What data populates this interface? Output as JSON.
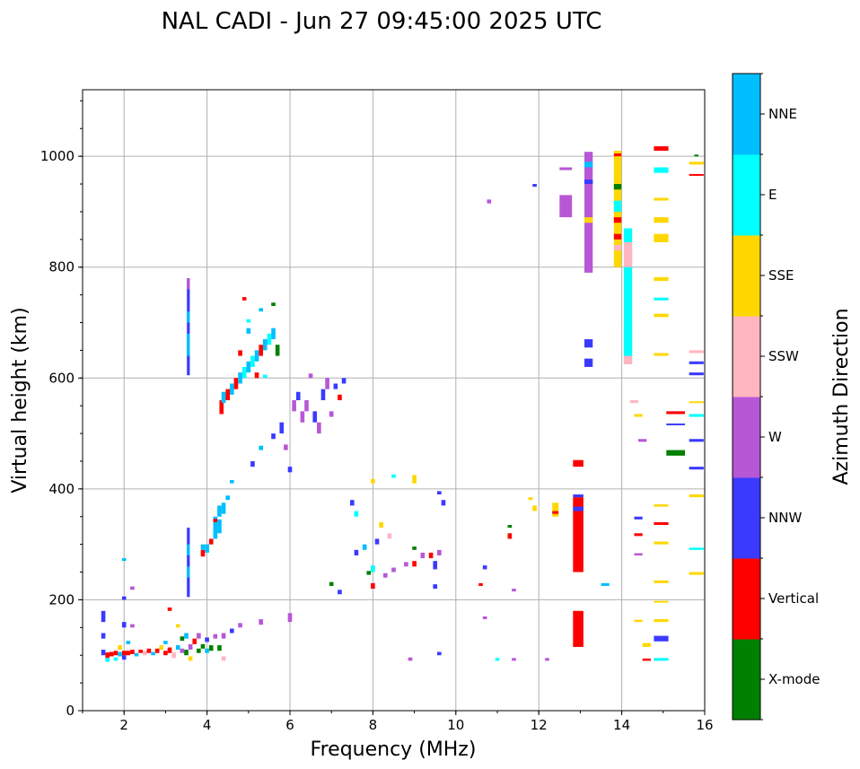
{
  "chart_data": {
    "type": "scatter",
    "title": "NAL CADI - Jun 27 09:45:00 2025 UTC",
    "xlabel": "Frequency (MHz)",
    "ylabel": "Virtual height (km)",
    "xlim": [
      1,
      16
    ],
    "ylim": [
      0,
      1120
    ],
    "xticks": [
      2,
      4,
      6,
      8,
      10,
      12,
      14,
      16
    ],
    "yticks": [
      0,
      200,
      400,
      600,
      800,
      1000
    ],
    "grid": true,
    "colorbar": {
      "label": "Azimuth Direction",
      "categories": [
        "X-mode",
        "Vertical",
        "NNW",
        "W",
        "SSW",
        "SSE",
        "E",
        "NNE"
      ],
      "colors": [
        "#008000",
        "#ff0000",
        "#3a3aff",
        "#b857d6",
        "#ffb6c1",
        "#ffd700",
        "#00ffff",
        "#00bfff"
      ]
    },
    "point_format": "[frequency_MHz, height_low_km, height_high_km, category_index, freq_width_MHz]",
    "points": [
      [
        1.5,
        160,
        180,
        2,
        0.1
      ],
      [
        1.5,
        130,
        140,
        2,
        0.1
      ],
      [
        1.5,
        100,
        110,
        2,
        0.1
      ],
      [
        1.6,
        95,
        105,
        1,
        0.1
      ],
      [
        1.6,
        88,
        95,
        6,
        0.1
      ],
      [
        1.7,
        98,
        106,
        1,
        0.1
      ],
      [
        1.8,
        100,
        108,
        1,
        0.1
      ],
      [
        1.8,
        90,
        96,
        6,
        0.1
      ],
      [
        1.9,
        98,
        106,
        7,
        0.1
      ],
      [
        1.9,
        110,
        118,
        5,
        0.1
      ],
      [
        2.0,
        92,
        100,
        2,
        0.1
      ],
      [
        2.0,
        100,
        108,
        1,
        0.1
      ],
      [
        2.0,
        150,
        160,
        2,
        0.1
      ],
      [
        2.0,
        200,
        206,
        2,
        0.1
      ],
      [
        2.0,
        270,
        275,
        7,
        0.1
      ],
      [
        2.1,
        100,
        108,
        1,
        0.1
      ],
      [
        2.1,
        120,
        126,
        7,
        0.1
      ],
      [
        2.2,
        102,
        110,
        1,
        0.1
      ],
      [
        2.2,
        150,
        156,
        3,
        0.1
      ],
      [
        2.2,
        218,
        224,
        3,
        0.1
      ],
      [
        2.3,
        98,
        104,
        7,
        0.1
      ],
      [
        2.4,
        104,
        110,
        1,
        0.1
      ],
      [
        2.5,
        100,
        108,
        4,
        0.1
      ],
      [
        2.6,
        104,
        112,
        1,
        0.1
      ],
      [
        2.7,
        100,
        106,
        7,
        0.1
      ],
      [
        2.8,
        104,
        112,
        1,
        0.1
      ],
      [
        2.9,
        110,
        118,
        5,
        0.1
      ],
      [
        3.0,
        100,
        108,
        1,
        0.1
      ],
      [
        3.0,
        120,
        126,
        7,
        0.1
      ],
      [
        3.1,
        104,
        114,
        1,
        0.1
      ],
      [
        3.1,
        180,
        186,
        1,
        0.1
      ],
      [
        3.2,
        95,
        105,
        4,
        0.1
      ],
      [
        3.3,
        110,
        118,
        7,
        0.1
      ],
      [
        3.3,
        150,
        156,
        5,
        0.1
      ],
      [
        3.4,
        104,
        112,
        3,
        0.1
      ],
      [
        3.4,
        126,
        134,
        0,
        0.1
      ],
      [
        3.5,
        100,
        110,
        0,
        0.1
      ],
      [
        3.5,
        130,
        140,
        7,
        0.1
      ],
      [
        3.6,
        110,
        120,
        3,
        0.1
      ],
      [
        3.6,
        90,
        98,
        5,
        0.1
      ],
      [
        3.7,
        120,
        130,
        1,
        0.1
      ],
      [
        3.8,
        104,
        112,
        0,
        0.1
      ],
      [
        3.8,
        130,
        140,
        3,
        0.1
      ],
      [
        3.9,
        112,
        120,
        0,
        0.1
      ],
      [
        4.0,
        124,
        132,
        2,
        0.1
      ],
      [
        4.0,
        104,
        112,
        7,
        0.1
      ],
      [
        4.1,
        108,
        118,
        0,
        0.1
      ],
      [
        4.2,
        130,
        138,
        3,
        0.1
      ],
      [
        4.3,
        108,
        118,
        0,
        0.1
      ],
      [
        4.4,
        130,
        140,
        3,
        0.1
      ],
      [
        4.6,
        140,
        148,
        2,
        0.1
      ],
      [
        4.8,
        150,
        158,
        3,
        0.1
      ],
      [
        5.3,
        155,
        165,
        3,
        0.1
      ],
      [
        6.0,
        160,
        176,
        3,
        0.1
      ],
      [
        4.4,
        90,
        98,
        4,
        0.1
      ],
      [
        3.55,
        205,
        330,
        2,
        0.07
      ],
      [
        3.55,
        240,
        260,
        7,
        0.07
      ],
      [
        3.55,
        280,
        300,
        7,
        0.07
      ],
      [
        3.55,
        605,
        780,
        2,
        0.07
      ],
      [
        3.55,
        640,
        680,
        7,
        0.07
      ],
      [
        3.55,
        700,
        720,
        7,
        0.07
      ],
      [
        3.55,
        760,
        780,
        3,
        0.07
      ],
      [
        3.9,
        278,
        290,
        1,
        0.1
      ],
      [
        3.9,
        290,
        300,
        7,
        0.1
      ],
      [
        4.0,
        285,
        300,
        7,
        0.1
      ],
      [
        4.1,
        300,
        310,
        7,
        0.1
      ],
      [
        4.2,
        310,
        330,
        7,
        0.1
      ],
      [
        4.2,
        330,
        350,
        7,
        0.1
      ],
      [
        4.3,
        320,
        345,
        7,
        0.1
      ],
      [
        4.3,
        350,
        370,
        7,
        0.1
      ],
      [
        4.4,
        355,
        375,
        7,
        0.1
      ],
      [
        4.5,
        380,
        388,
        7,
        0.1
      ],
      [
        4.1,
        300,
        310,
        1,
        0.1
      ],
      [
        4.2,
        340,
        346,
        1,
        0.1
      ],
      [
        4.6,
        410,
        416,
        7,
        0.1
      ],
      [
        4.35,
        535,
        560,
        1,
        0.1
      ],
      [
        4.4,
        555,
        575,
        7,
        0.1
      ],
      [
        4.5,
        560,
        580,
        1,
        0.1
      ],
      [
        4.6,
        570,
        590,
        7,
        0.1
      ],
      [
        4.7,
        580,
        600,
        1,
        0.1
      ],
      [
        4.8,
        590,
        610,
        7,
        0.1
      ],
      [
        4.9,
        600,
        620,
        6,
        0.1
      ],
      [
        5.0,
        610,
        630,
        7,
        0.1
      ],
      [
        5.1,
        620,
        640,
        6,
        0.1
      ],
      [
        5.2,
        630,
        650,
        7,
        0.1
      ],
      [
        5.3,
        640,
        660,
        1,
        0.1
      ],
      [
        5.4,
        650,
        670,
        7,
        0.1
      ],
      [
        5.5,
        660,
        680,
        6,
        0.1
      ],
      [
        5.6,
        670,
        690,
        7,
        0.1
      ],
      [
        5.7,
        640,
        660,
        0,
        0.1
      ],
      [
        4.9,
        740,
        746,
        1,
        0.1
      ],
      [
        5.0,
        700,
        706,
        6,
        0.1
      ],
      [
        5.3,
        720,
        726,
        7,
        0.1
      ],
      [
        5.6,
        730,
        736,
        0,
        0.1
      ],
      [
        5.4,
        600,
        606,
        6,
        0.1
      ],
      [
        5.0,
        680,
        690,
        7,
        0.1
      ],
      [
        4.8,
        640,
        650,
        1,
        0.1
      ],
      [
        5.2,
        600,
        610,
        1,
        0.1
      ],
      [
        5.1,
        440,
        450,
        2,
        0.1
      ],
      [
        5.3,
        470,
        478,
        7,
        0.1
      ],
      [
        5.6,
        490,
        500,
        2,
        0.1
      ],
      [
        5.8,
        500,
        520,
        2,
        0.1
      ],
      [
        5.9,
        470,
        480,
        3,
        0.1
      ],
      [
        6.0,
        430,
        440,
        2,
        0.1
      ],
      [
        6.1,
        540,
        560,
        3,
        0.1
      ],
      [
        6.2,
        560,
        575,
        2,
        0.1
      ],
      [
        6.3,
        520,
        540,
        3,
        0.1
      ],
      [
        6.4,
        540,
        560,
        3,
        0.1
      ],
      [
        6.5,
        600,
        608,
        3,
        0.1
      ],
      [
        6.6,
        520,
        540,
        2,
        0.1
      ],
      [
        6.7,
        500,
        520,
        3,
        0.1
      ],
      [
        6.8,
        560,
        580,
        2,
        0.1
      ],
      [
        6.9,
        580,
        600,
        3,
        0.1
      ],
      [
        7.0,
        530,
        540,
        3,
        0.1
      ],
      [
        7.1,
        580,
        590,
        2,
        0.1
      ],
      [
        7.2,
        560,
        570,
        1,
        0.1
      ],
      [
        7.3,
        590,
        600,
        2,
        0.1
      ],
      [
        7.0,
        225,
        232,
        0,
        0.1
      ],
      [
        7.2,
        210,
        218,
        2,
        0.1
      ],
      [
        7.5,
        370,
        380,
        2,
        0.1
      ],
      [
        7.6,
        350,
        360,
        6,
        0.1
      ],
      [
        7.6,
        280,
        290,
        2,
        0.1
      ],
      [
        7.8,
        290,
        300,
        7,
        0.1
      ],
      [
        7.9,
        245,
        252,
        0,
        0.1
      ],
      [
        8.0,
        220,
        230,
        1,
        0.1
      ],
      [
        8.0,
        410,
        418,
        5,
        0.1
      ],
      [
        8.1,
        300,
        310,
        2,
        0.1
      ],
      [
        8.2,
        330,
        340,
        5,
        0.1
      ],
      [
        8.3,
        240,
        248,
        3,
        0.1
      ],
      [
        8.4,
        310,
        320,
        4,
        0.1
      ],
      [
        8.5,
        250,
        258,
        3,
        0.1
      ],
      [
        8.5,
        420,
        426,
        6,
        0.1
      ],
      [
        8.8,
        260,
        268,
        3,
        0.1
      ],
      [
        9.0,
        260,
        270,
        1,
        0.1
      ],
      [
        9.0,
        290,
        296,
        0,
        0.1
      ],
      [
        9.0,
        410,
        425,
        5,
        0.1
      ],
      [
        9.2,
        275,
        285,
        3,
        0.1
      ],
      [
        9.4,
        275,
        285,
        1,
        0.1
      ],
      [
        9.5,
        255,
        270,
        2,
        0.1
      ],
      [
        9.6,
        280,
        290,
        3,
        0.1
      ],
      [
        9.6,
        390,
        396,
        2,
        0.1
      ],
      [
        9.7,
        370,
        380,
        2,
        0.1
      ],
      [
        9.5,
        220,
        228,
        2,
        0.1
      ],
      [
        9.6,
        100,
        106,
        2,
        0.1
      ],
      [
        8.9,
        90,
        96,
        3,
        0.1
      ],
      [
        8.0,
        250,
        262,
        6,
        0.1
      ],
      [
        10.6,
        225,
        230,
        1,
        0.1
      ],
      [
        10.7,
        255,
        262,
        2,
        0.1
      ],
      [
        10.7,
        165,
        170,
        3,
        0.1
      ],
      [
        10.8,
        915,
        922,
        3,
        0.1
      ],
      [
        11.0,
        90,
        95,
        6,
        0.1
      ],
      [
        11.3,
        310,
        320,
        1,
        0.1
      ],
      [
        11.3,
        330,
        335,
        0,
        0.1
      ],
      [
        11.4,
        90,
        95,
        3,
        0.1
      ],
      [
        11.4,
        215,
        220,
        3,
        0.1
      ],
      [
        11.9,
        945,
        950,
        2,
        0.1
      ],
      [
        11.9,
        360,
        370,
        5,
        0.1
      ],
      [
        11.8,
        380,
        385,
        5,
        0.1
      ],
      [
        12.2,
        90,
        95,
        3,
        0.1
      ],
      [
        12.4,
        350,
        375,
        5,
        0.15
      ],
      [
        12.4,
        355,
        360,
        1,
        0.15
      ],
      [
        12.65,
        890,
        930,
        3,
        0.3
      ],
      [
        12.65,
        975,
        980,
        3,
        0.3
      ],
      [
        12.95,
        250,
        385,
        1,
        0.25
      ],
      [
        12.95,
        115,
        180,
        1,
        0.25
      ],
      [
        12.95,
        440,
        452,
        1,
        0.25
      ],
      [
        12.95,
        360,
        368,
        2,
        0.25
      ],
      [
        12.95,
        385,
        390,
        2,
        0.25
      ],
      [
        13.2,
        790,
        1008,
        3,
        0.2
      ],
      [
        13.2,
        880,
        890,
        5,
        0.2
      ],
      [
        13.2,
        950,
        958,
        2,
        0.2
      ],
      [
        13.2,
        620,
        635,
        2,
        0.2
      ],
      [
        13.2,
        655,
        670,
        2,
        0.2
      ],
      [
        13.2,
        980,
        990,
        7,
        0.2
      ],
      [
        13.6,
        225,
        230,
        7,
        0.2
      ],
      [
        13.9,
        800,
        1010,
        5,
        0.18
      ],
      [
        13.9,
        940,
        950,
        0,
        0.18
      ],
      [
        13.9,
        880,
        890,
        1,
        0.18
      ],
      [
        13.9,
        830,
        840,
        4,
        0.18
      ],
      [
        13.9,
        900,
        920,
        6,
        0.18
      ],
      [
        13.9,
        1000,
        1005,
        1,
        0.18
      ],
      [
        13.9,
        850,
        860,
        1,
        0.18
      ],
      [
        14.15,
        625,
        870,
        6,
        0.2
      ],
      [
        14.15,
        640,
        700,
        6,
        0.2
      ],
      [
        14.15,
        800,
        845,
        4,
        0.2
      ],
      [
        14.15,
        625,
        640,
        4,
        0.2
      ],
      [
        14.3,
        555,
        560,
        4,
        0.2
      ],
      [
        14.4,
        345,
        350,
        2,
        0.2
      ],
      [
        14.4,
        315,
        320,
        1,
        0.2
      ],
      [
        14.4,
        280,
        284,
        3,
        0.2
      ],
      [
        14.4,
        160,
        164,
        5,
        0.2
      ],
      [
        14.5,
        485,
        490,
        3,
        0.2
      ],
      [
        14.6,
        115,
        122,
        5,
        0.2
      ],
      [
        14.6,
        90,
        94,
        1,
        0.2
      ],
      [
        14.4,
        530,
        535,
        5,
        0.2
      ],
      [
        14.95,
        1010,
        1018,
        1,
        0.35
      ],
      [
        14.95,
        970,
        980,
        6,
        0.35
      ],
      [
        14.95,
        920,
        925,
        5,
        0.35
      ],
      [
        14.95,
        880,
        890,
        5,
        0.35
      ],
      [
        14.95,
        845,
        860,
        5,
        0.35
      ],
      [
        14.95,
        775,
        782,
        5,
        0.35
      ],
      [
        14.95,
        740,
        745,
        6,
        0.35
      ],
      [
        14.95,
        710,
        716,
        5,
        0.35
      ],
      [
        14.95,
        640,
        645,
        5,
        0.35
      ],
      [
        14.95,
        335,
        340,
        1,
        0.35
      ],
      [
        14.95,
        300,
        305,
        5,
        0.35
      ],
      [
        14.95,
        230,
        235,
        5,
        0.35
      ],
      [
        14.95,
        195,
        198,
        5,
        0.35
      ],
      [
        14.95,
        160,
        165,
        5,
        0.35
      ],
      [
        14.95,
        125,
        135,
        2,
        0.35
      ],
      [
        14.95,
        90,
        95,
        6,
        0.35
      ],
      [
        14.95,
        368,
        372,
        5,
        0.35
      ],
      [
        15.3,
        535,
        540,
        1,
        0.45
      ],
      [
        15.3,
        460,
        470,
        0,
        0.45
      ],
      [
        15.3,
        515,
        518,
        2,
        0.45
      ],
      [
        15.8,
        985,
        990,
        5,
        0.35
      ],
      [
        15.8,
        965,
        968,
        1,
        0.35
      ],
      [
        15.8,
        645,
        650,
        4,
        0.35
      ],
      [
        15.8,
        605,
        610,
        2,
        0.35
      ],
      [
        15.8,
        625,
        630,
        2,
        0.35
      ],
      [
        15.8,
        555,
        558,
        5,
        0.35
      ],
      [
        15.8,
        530,
        535,
        6,
        0.35
      ],
      [
        15.8,
        485,
        490,
        2,
        0.35
      ],
      [
        15.8,
        435,
        440,
        2,
        0.35
      ],
      [
        15.8,
        385,
        390,
        5,
        0.35
      ],
      [
        15.8,
        290,
        294,
        6,
        0.35
      ],
      [
        15.8,
        245,
        250,
        5,
        0.35
      ],
      [
        15.8,
        1000,
        1003,
        0,
        0.1
      ]
    ]
  }
}
